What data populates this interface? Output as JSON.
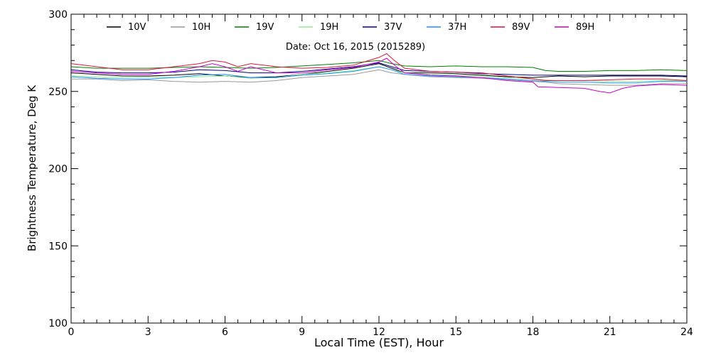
{
  "chart_data": {
    "type": "line",
    "title": "",
    "subtitle": "Date: Oct 16, 2015 (2015289)",
    "xlabel": "Local Time (EST), Hour",
    "ylabel": "Brightness Temperature, Deg K",
    "xlim": [
      0,
      24
    ],
    "ylim": [
      100,
      300
    ],
    "xticks": [
      0,
      3,
      6,
      9,
      12,
      15,
      18,
      21,
      24
    ],
    "yticks": [
      100,
      150,
      200,
      250,
      300
    ],
    "grid": false,
    "legend": "top",
    "series": [
      {
        "name": "10V",
        "color": "#000000",
        "points": [
          [
            0,
            262
          ],
          [
            1,
            261
          ],
          [
            2,
            260
          ],
          [
            3,
            260
          ],
          [
            4,
            260.5
          ],
          [
            5,
            261.5
          ],
          [
            6,
            260
          ],
          [
            7,
            259
          ],
          [
            8,
            259.5
          ],
          [
            9,
            261
          ],
          [
            10,
            263
          ],
          [
            11,
            265
          ],
          [
            12,
            268
          ],
          [
            12.5,
            265
          ],
          [
            13,
            262
          ],
          [
            14,
            262
          ],
          [
            15,
            261.5
          ],
          [
            16,
            260.5
          ],
          [
            17,
            259.5
          ],
          [
            18,
            259
          ],
          [
            18.5,
            259.5
          ],
          [
            19,
            260
          ],
          [
            20,
            259.5
          ],
          [
            21,
            260
          ],
          [
            22,
            260
          ],
          [
            23,
            260
          ],
          [
            24,
            259.5
          ]
        ]
      },
      {
        "name": "10H",
        "color": "#999999",
        "points": [
          [
            0,
            258
          ],
          [
            1,
            258
          ],
          [
            2,
            257
          ],
          [
            3,
            257.5
          ],
          [
            4,
            256.5
          ],
          [
            5,
            256
          ],
          [
            6,
            256.5
          ],
          [
            7,
            256
          ],
          [
            8,
            257
          ],
          [
            9,
            259
          ],
          [
            10,
            260
          ],
          [
            11,
            261
          ],
          [
            12,
            264
          ],
          [
            12.5,
            262
          ],
          [
            13,
            261
          ],
          [
            14,
            259.5
          ],
          [
            15,
            259
          ],
          [
            16,
            258.5
          ],
          [
            17,
            257.5
          ],
          [
            18,
            256.5
          ],
          [
            18.5,
            256
          ],
          [
            19,
            255
          ],
          [
            20,
            254.5
          ],
          [
            21,
            254
          ],
          [
            22,
            254
          ],
          [
            23,
            255
          ],
          [
            24,
            255
          ]
        ]
      },
      {
        "name": "19V",
        "color": "#008000",
        "points": [
          [
            0,
            266
          ],
          [
            1,
            265
          ],
          [
            2,
            265
          ],
          [
            3,
            265
          ],
          [
            4,
            265.5
          ],
          [
            5,
            266
          ],
          [
            6,
            265.5
          ],
          [
            7,
            265
          ],
          [
            8,
            265.5
          ],
          [
            9,
            266.5
          ],
          [
            10,
            267.5
          ],
          [
            11,
            268.5
          ],
          [
            12,
            270
          ],
          [
            12.5,
            268
          ],
          [
            13,
            266.5
          ],
          [
            14,
            266
          ],
          [
            15,
            266.5
          ],
          [
            16,
            266
          ],
          [
            17,
            266
          ],
          [
            18,
            265.5
          ],
          [
            18.5,
            263.5
          ],
          [
            19,
            263
          ],
          [
            20,
            263
          ],
          [
            21,
            263.5
          ],
          [
            22,
            263.5
          ],
          [
            23,
            264
          ],
          [
            24,
            263.5
          ]
        ]
      },
      {
        "name": "19H",
        "color": "#90ee90",
        "points": [
          [
            0,
            260
          ],
          [
            1,
            259.5
          ],
          [
            2,
            259
          ],
          [
            3,
            259.5
          ],
          [
            4,
            259
          ],
          [
            5,
            259.5
          ],
          [
            6,
            260
          ],
          [
            7,
            258.5
          ],
          [
            8,
            259
          ],
          [
            9,
            261
          ],
          [
            10,
            262
          ],
          [
            11,
            263.5
          ],
          [
            12,
            266
          ],
          [
            12.5,
            264
          ],
          [
            13,
            262
          ],
          [
            14,
            261
          ],
          [
            15,
            260.5
          ],
          [
            16,
            260
          ],
          [
            17,
            259
          ],
          [
            18,
            258
          ],
          [
            18.5,
            257.5
          ],
          [
            19,
            257
          ],
          [
            20,
            257
          ],
          [
            21,
            256.5
          ],
          [
            22,
            256.5
          ],
          [
            23,
            257
          ],
          [
            24,
            257
          ]
        ]
      },
      {
        "name": "37V",
        "color": "#00008b",
        "points": [
          [
            0,
            264
          ],
          [
            1,
            262.5
          ],
          [
            2,
            262
          ],
          [
            3,
            262
          ],
          [
            4,
            262.5
          ],
          [
            5,
            264
          ],
          [
            6,
            263.5
          ],
          [
            7,
            262
          ],
          [
            8,
            262
          ],
          [
            9,
            263
          ],
          [
            10,
            264.5
          ],
          [
            11,
            266
          ],
          [
            12,
            268.5
          ],
          [
            12.5,
            266
          ],
          [
            13,
            263.5
          ],
          [
            14,
            263
          ],
          [
            15,
            262.5
          ],
          [
            16,
            261.5
          ],
          [
            17,
            261
          ],
          [
            18,
            260.5
          ],
          [
            18.5,
            260.5
          ],
          [
            19,
            260.5
          ],
          [
            20,
            260.5
          ],
          [
            21,
            260.5
          ],
          [
            22,
            260.5
          ],
          [
            23,
            260.5
          ],
          [
            24,
            260
          ]
        ]
      },
      {
        "name": "37H",
        "color": "#1e90ff",
        "points": [
          [
            0,
            259.5
          ],
          [
            1,
            258.5
          ],
          [
            2,
            258
          ],
          [
            3,
            258
          ],
          [
            4,
            259
          ],
          [
            5,
            260.5
          ],
          [
            6,
            261
          ],
          [
            7,
            259
          ],
          [
            8,
            259
          ],
          [
            9,
            260.5
          ],
          [
            10,
            261.5
          ],
          [
            11,
            263
          ],
          [
            12,
            266
          ],
          [
            12.5,
            264
          ],
          [
            13,
            261
          ],
          [
            14,
            260
          ],
          [
            15,
            259.5
          ],
          [
            16,
            259
          ],
          [
            17,
            258
          ],
          [
            18,
            257
          ],
          [
            18.5,
            256.5
          ],
          [
            19,
            256
          ],
          [
            20,
            256
          ],
          [
            21,
            255.5
          ],
          [
            22,
            255.5
          ],
          [
            23,
            256.5
          ],
          [
            24,
            256.5
          ]
        ]
      },
      {
        "name": "89V",
        "color": "#dc143c",
        "points": [
          [
            0,
            268
          ],
          [
            1,
            266
          ],
          [
            2,
            264
          ],
          [
            3,
            264
          ],
          [
            4,
            266
          ],
          [
            5,
            268
          ],
          [
            5.5,
            270
          ],
          [
            6,
            269
          ],
          [
            6.5,
            266
          ],
          [
            7,
            268
          ],
          [
            8,
            266
          ],
          [
            9,
            265
          ],
          [
            10,
            265.5
          ],
          [
            11,
            267
          ],
          [
            12,
            272
          ],
          [
            12.3,
            274.5
          ],
          [
            12.6,
            270
          ],
          [
            13,
            265
          ],
          [
            14,
            263
          ],
          [
            15,
            262.5
          ],
          [
            16,
            262
          ],
          [
            17,
            260
          ],
          [
            18,
            258
          ],
          [
            18.5,
            257
          ],
          [
            19,
            257
          ],
          [
            20,
            257
          ],
          [
            21,
            257.5
          ],
          [
            22,
            258
          ],
          [
            23,
            258
          ],
          [
            24,
            257
          ]
        ]
      },
      {
        "name": "89H",
        "color": "#cc00cc",
        "points": [
          [
            0,
            263
          ],
          [
            1,
            262
          ],
          [
            2,
            261
          ],
          [
            3,
            261
          ],
          [
            4,
            263
          ],
          [
            5,
            266
          ],
          [
            5.5,
            268
          ],
          [
            6,
            266
          ],
          [
            6.5,
            263
          ],
          [
            7,
            266
          ],
          [
            8,
            262
          ],
          [
            9,
            262
          ],
          [
            10,
            264
          ],
          [
            11,
            265.5
          ],
          [
            12,
            269
          ],
          [
            12.3,
            271.5
          ],
          [
            12.6,
            267
          ],
          [
            13,
            262
          ],
          [
            14,
            260.5
          ],
          [
            15,
            260
          ],
          [
            16,
            259
          ],
          [
            17,
            257
          ],
          [
            18,
            256
          ],
          [
            18.2,
            253
          ],
          [
            19,
            252.5
          ],
          [
            20,
            252
          ],
          [
            20.6,
            250
          ],
          [
            21,
            249
          ],
          [
            21.5,
            252
          ],
          [
            22,
            253.5
          ],
          [
            23,
            254.5
          ],
          [
            24,
            254
          ]
        ]
      }
    ]
  }
}
